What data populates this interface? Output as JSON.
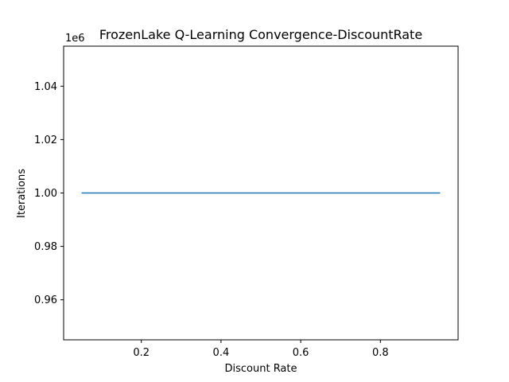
{
  "chart_data": {
    "type": "line",
    "title": "FrozenLake Q-Learning Convergence-DiscountRate",
    "xlabel": "Discount Rate",
    "ylabel": "Iterations",
    "y_offset_text": "1e6",
    "xlim": [
      0.005,
      0.995
    ],
    "ylim": [
      0.945,
      1.055
    ],
    "x_ticks": [
      0.2,
      0.4,
      0.6,
      0.8
    ],
    "x_tick_labels": [
      "0.2",
      "0.4",
      "0.6",
      "0.8"
    ],
    "y_ticks": [
      0.96,
      0.98,
      1.0,
      1.02,
      1.04
    ],
    "y_tick_labels": [
      "0.96",
      "0.98",
      "1.00",
      "1.02",
      "1.04"
    ],
    "grid": false,
    "series": [
      {
        "color": "#1f77b4",
        "x": [
          0.05,
          0.15,
          0.25,
          0.35,
          0.45,
          0.55,
          0.65,
          0.75,
          0.85,
          0.95
        ],
        "y": [
          1.0,
          1.0,
          1.0,
          1.0,
          1.0,
          1.0,
          1.0,
          1.0,
          1.0,
          1.0
        ]
      }
    ]
  }
}
